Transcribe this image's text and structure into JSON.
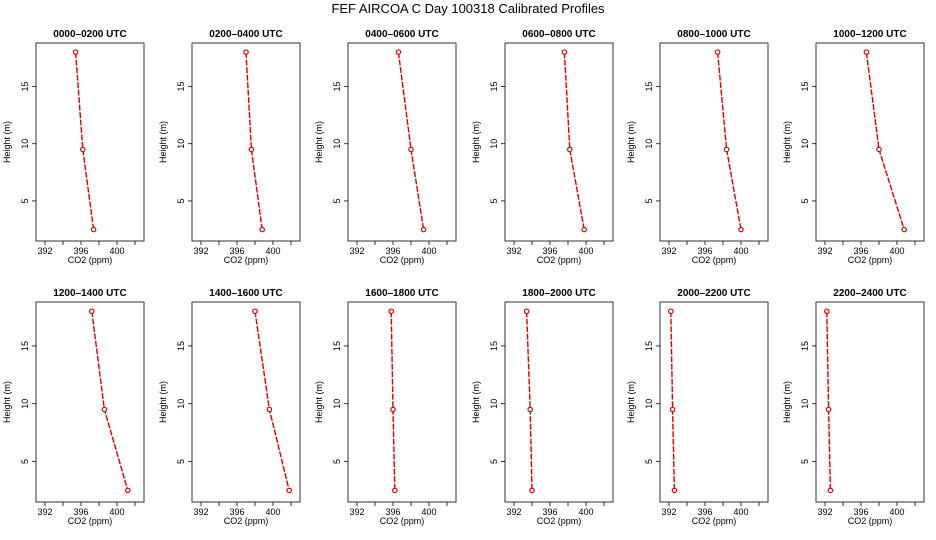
{
  "title": "FEF AIRCOA C  Day 100318  Calibrated Profiles",
  "colors": {
    "profile": "#dd0000",
    "axis": "#000000"
  },
  "chart_data": {
    "type": "line",
    "layout": "2x6 small multiples",
    "xlabel": "CO2 (ppm)",
    "ylabel": "Height (m)",
    "xlim": [
      391,
      403
    ],
    "ylim": [
      1.5,
      18.8
    ],
    "xticks": [
      "392",
      "396",
      "400"
    ],
    "yticks": [
      "5",
      "10",
      "15"
    ],
    "heights": [
      18,
      9.5,
      2.5
    ],
    "panels": [
      {
        "title": "0000–0200 UTC",
        "x": [
          395.4,
          396.2,
          397.4
        ]
      },
      {
        "title": "0200–0400 UTC",
        "x": [
          397.0,
          397.6,
          398.8
        ]
      },
      {
        "title": "0400–0600 UTC",
        "x": [
          396.6,
          398.0,
          399.4
        ]
      },
      {
        "title": "0600–0800 UTC",
        "x": [
          397.6,
          398.2,
          399.8
        ]
      },
      {
        "title": "0800–1000 UTC",
        "x": [
          397.4,
          398.4,
          400.0
        ]
      },
      {
        "title": "1000–1200 UTC",
        "x": [
          396.6,
          398.0,
          400.8
        ]
      },
      {
        "title": "1200–1400 UTC",
        "x": [
          397.2,
          398.6,
          401.2
        ]
      },
      {
        "title": "1400–1600 UTC",
        "x": [
          398.0,
          399.6,
          401.8
        ]
      },
      {
        "title": "1600–1800 UTC",
        "x": [
          395.8,
          396.0,
          396.2
        ]
      },
      {
        "title": "1800–2000 UTC",
        "x": [
          393.4,
          393.8,
          394.0
        ]
      },
      {
        "title": "2000–2200 UTC",
        "x": [
          392.2,
          392.4,
          392.6
        ]
      },
      {
        "title": "2200–2400 UTC",
        "x": [
          392.2,
          392.4,
          392.6
        ]
      }
    ]
  }
}
